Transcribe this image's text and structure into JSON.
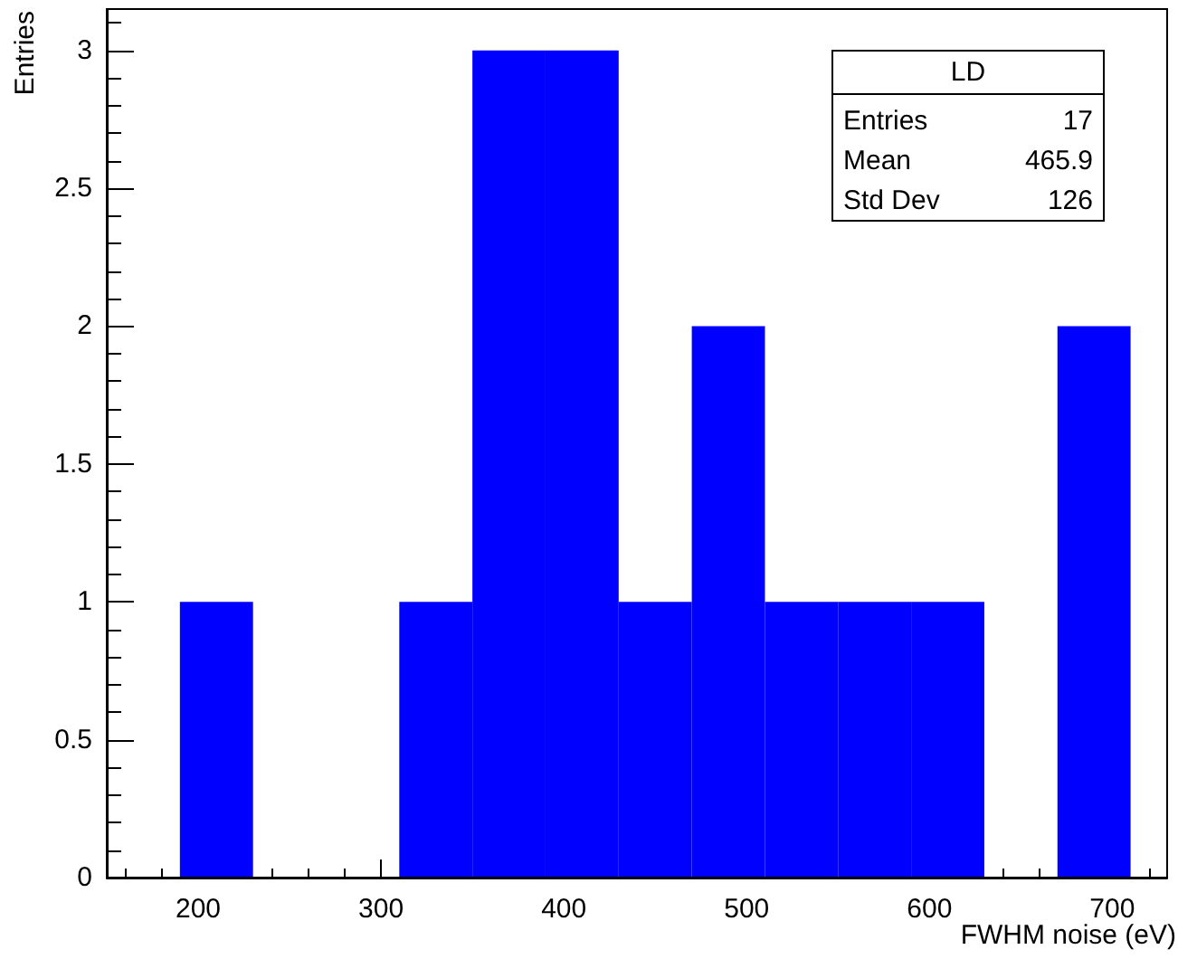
{
  "chart_data": {
    "type": "histogram",
    "title": "LD",
    "xlabel": "FWHM noise (eV)",
    "ylabel": "Entries",
    "bins": [
      150,
      190,
      230,
      270,
      310,
      350,
      390,
      430,
      470,
      510,
      550,
      590,
      630,
      670,
      710
    ],
    "values": [
      0,
      1,
      0,
      0,
      1,
      3,
      3,
      1,
      2,
      1,
      1,
      1,
      0,
      2
    ],
    "color": "#0000ff",
    "xlim": [
      150,
      730
    ],
    "xticks": [
      200,
      300,
      400,
      500,
      600,
      700
    ],
    "ylim": [
      0,
      3.15
    ],
    "yticks": [
      0,
      0.5,
      1,
      1.5,
      2,
      2.5,
      3
    ],
    "grid": false,
    "legend": false,
    "annotations": [
      "Entries",
      "17",
      "Mean",
      "465.9",
      "Std Dev",
      "126"
    ]
  }
}
